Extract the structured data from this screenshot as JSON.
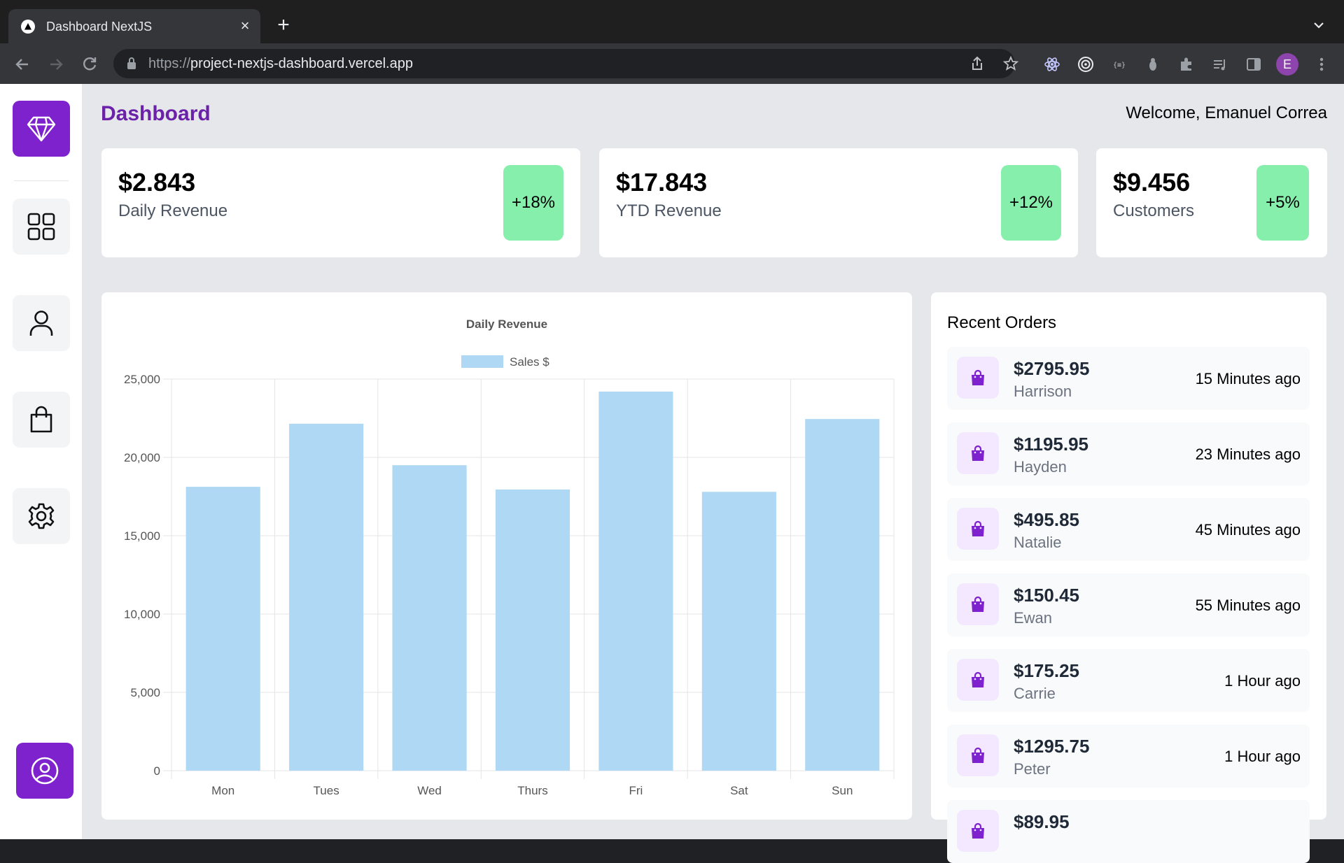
{
  "browser": {
    "tab_title": "Dashboard NextJS",
    "tab_close": "×",
    "new_tab": "+",
    "url_scheme": "https://",
    "url_host": "project-nextjs-dashboard.vercel.app",
    "profile_initial": "E"
  },
  "header": {
    "title": "Dashboard",
    "welcome": "Welcome, Emanuel Correa"
  },
  "sidebar": {
    "items": [
      {
        "name": "dashboard",
        "icon": "grid-icon"
      },
      {
        "name": "customers",
        "icon": "user-icon"
      },
      {
        "name": "orders",
        "icon": "shopping-bag-icon"
      },
      {
        "name": "settings",
        "icon": "gear-icon"
      }
    ]
  },
  "stats": [
    {
      "value": "$2.843",
      "label": "Daily Revenue",
      "change": "+18%"
    },
    {
      "value": "$17.843",
      "label": "YTD Revenue",
      "change": "+12%"
    },
    {
      "value": "$9.456",
      "label": "Customers",
      "change": "+5%"
    }
  ],
  "chart_data": {
    "type": "bar",
    "title": "Daily Revenue",
    "categories": [
      "Mon",
      "Tues",
      "Wed",
      "Thurs",
      "Fri",
      "Sat",
      "Sun"
    ],
    "series": [
      {
        "name": "Sales $",
        "values": [
          18120,
          22150,
          19500,
          17950,
          24200,
          17800,
          22450
        ]
      }
    ],
    "ylim": [
      0,
      25000
    ],
    "yticks": [
      0,
      5000,
      10000,
      15000,
      20000,
      25000
    ],
    "ytick_labels": [
      "0",
      "5,000",
      "10,000",
      "15,000",
      "20,000",
      "25,000"
    ],
    "grid": true,
    "legend": "top-center",
    "bar_color": "#aed8f3"
  },
  "orders": {
    "title": "Recent Orders",
    "items": [
      {
        "amount": "$2795.95",
        "name": "Harrison",
        "time": "15 Minutes ago"
      },
      {
        "amount": "$1195.95",
        "name": "Hayden",
        "time": "23 Minutes ago"
      },
      {
        "amount": "$495.85",
        "name": "Natalie",
        "time": "45 Minutes ago"
      },
      {
        "amount": "$150.45",
        "name": "Ewan",
        "time": "55 Minutes ago"
      },
      {
        "amount": "$175.25",
        "name": "Carrie",
        "time": "1 Hour ago"
      },
      {
        "amount": "$1295.75",
        "name": "Peter",
        "time": "1 Hour ago"
      },
      {
        "amount": "$89.95",
        "name": "",
        "time": ""
      }
    ]
  },
  "colors": {
    "accent": "#7e22ce",
    "title": "#6b21a8",
    "badge": "#86efac",
    "page_bg": "#e5e7eb"
  }
}
